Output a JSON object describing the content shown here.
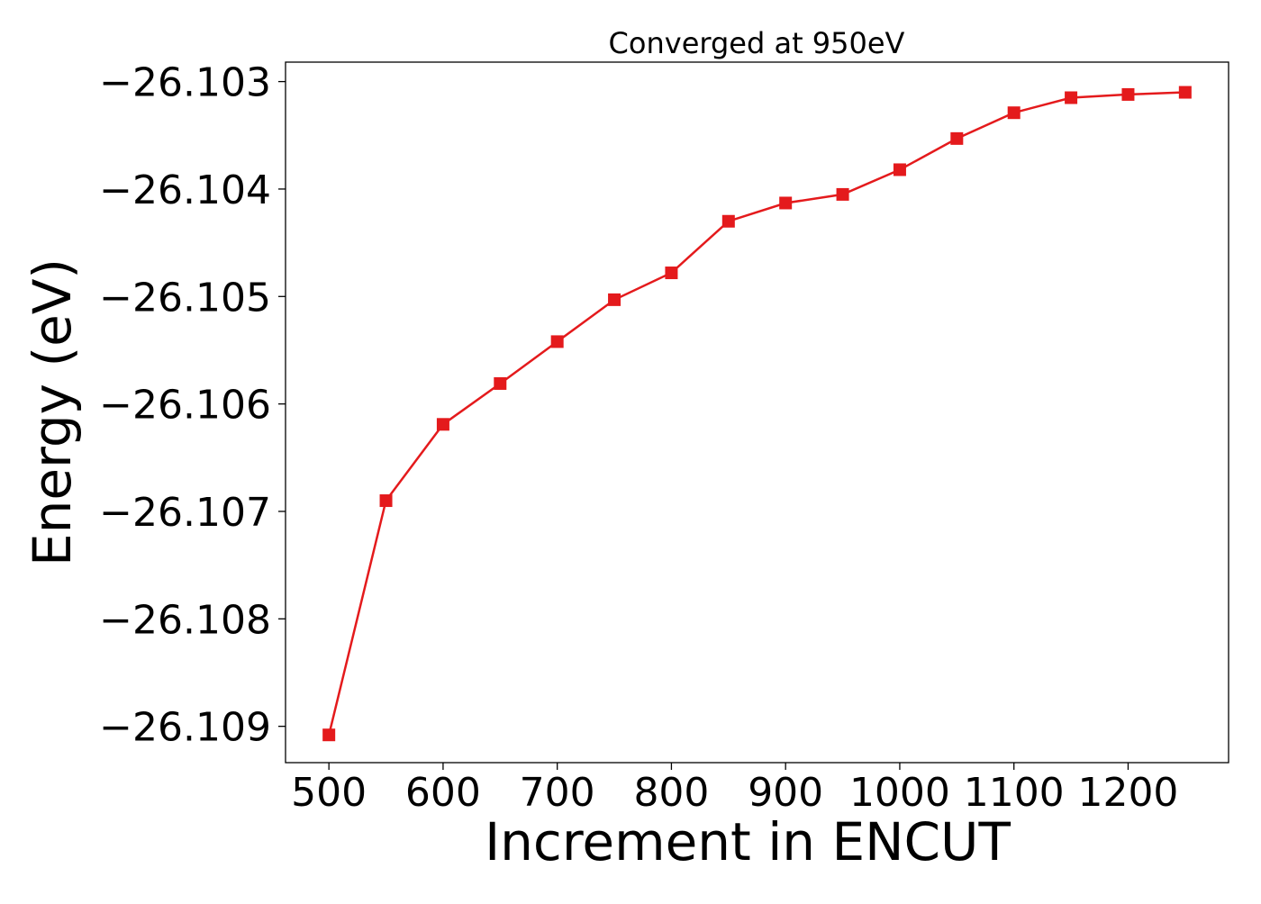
{
  "chart_data": {
    "type": "line",
    "title": "Converged at 950eV",
    "xlabel": "Increment in ENCUT",
    "ylabel": "Energy (eV)",
    "x": [
      500,
      550,
      600,
      650,
      700,
      750,
      800,
      850,
      900,
      950,
      1000,
      1050,
      1100,
      1150,
      1200,
      1250
    ],
    "series": [
      {
        "values": [
          -26.10908,
          -26.1069,
          -26.10619,
          -26.10581,
          -26.10542,
          -26.10503,
          -26.10478,
          -26.1043,
          -26.10413,
          -26.10405,
          -26.10382,
          -26.10353,
          -26.10329,
          -26.10315,
          -26.10312,
          -26.1031
        ]
      }
    ],
    "xlim": [
      462,
      1288
    ],
    "ylim": [
      -26.109338,
      -26.102819
    ],
    "xticks": [
      500,
      600,
      700,
      800,
      900,
      1000,
      1100,
      1200
    ],
    "xtick_labels": [
      "500",
      "600",
      "700",
      "800",
      "900",
      "1000",
      "1100",
      "1200"
    ],
    "yticks": [
      -26.109,
      -26.108,
      -26.107,
      -26.106,
      -26.105,
      -26.104,
      -26.103
    ],
    "ytick_labels": [
      "−26.109",
      "−26.108",
      "−26.107",
      "−26.106",
      "−26.105",
      "−26.104",
      "−26.103"
    ],
    "grid": false,
    "marker": "square",
    "line_color": "#e41a1c",
    "marker_color": "#e41a1c"
  }
}
